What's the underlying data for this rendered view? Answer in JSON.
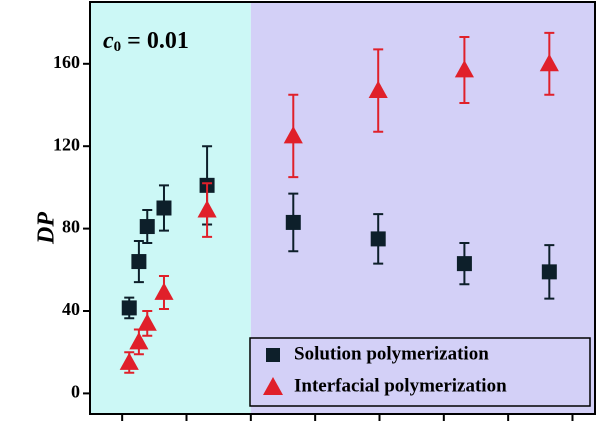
{
  "chart_data": {
    "type": "scatter",
    "annotation": {
      "text": "c",
      "subscript": "0",
      "rest": " = 0.01"
    },
    "y_label": "DP",
    "xlim": [
      0.5,
      8.35
    ],
    "xticks": [
      1,
      2,
      3,
      4,
      5,
      6,
      7,
      8
    ],
    "ylim": [
      -10,
      190
    ],
    "yticks": [
      0,
      40,
      80,
      120,
      160
    ],
    "shaded_regions": [
      {
        "from": 0.5,
        "to": 3,
        "color": "#ccf8f6"
      },
      {
        "from": 3,
        "to": 8.35,
        "color": "#d3d0f7"
      }
    ],
    "legend": "lower right",
    "series": [
      {
        "name": "Solution polymerization",
        "color": "#0d1f2a",
        "marker": "square",
        "x": [
          1.11,
          1.26,
          1.39,
          1.65,
          2.32,
          3.66,
          4.98,
          6.32,
          7.64
        ],
        "values": [
          41.5,
          64,
          81,
          90,
          101,
          83,
          75,
          63,
          59
        ],
        "errors": [
          5,
          10,
          8,
          11,
          19,
          14,
          12,
          10,
          13
        ]
      },
      {
        "name": "Interfacial polymerization",
        "color": "#e0202a",
        "marker": "triangle",
        "x": [
          1.11,
          1.26,
          1.39,
          1.65,
          2.32,
          3.66,
          4.98,
          6.32,
          7.64
        ],
        "values": [
          15,
          25,
          34,
          49,
          89,
          125,
          147,
          157,
          160
        ],
        "errors": [
          5,
          6,
          6,
          8,
          13,
          20,
          20,
          16,
          15
        ]
      }
    ]
  }
}
